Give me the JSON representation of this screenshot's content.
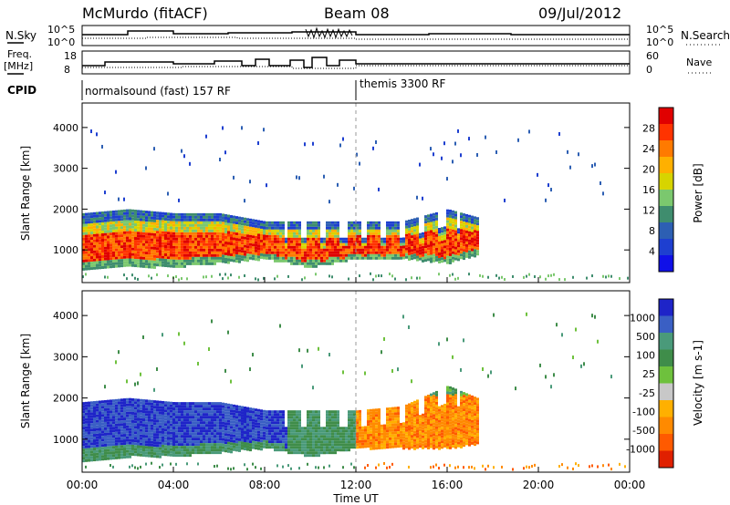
{
  "header": {
    "station": "McMurdo (fitACF)",
    "beam": "Beam 08",
    "date": "09/Jul/2012"
  },
  "top_panels": {
    "nsky_label": "N.Sky",
    "nsky_ticks": [
      "10^5",
      "10^0"
    ],
    "nsearch_label": "N.Search",
    "nsearch_ticks": [
      "10^5",
      "10^0"
    ],
    "freq_label": "Freq.",
    "freq_unit": "[MHz]",
    "freq_ticks": [
      "18",
      "8"
    ],
    "nave_label": "Nave",
    "nave_ticks": [
      "60",
      "0"
    ],
    "cpid_label": "CPID",
    "cpid_segments": [
      {
        "name": "normalsound (fast) 157 RF",
        "start_hour": 0
      },
      {
        "name": "themis 3300 RF",
        "start_hour": 12
      }
    ]
  },
  "colorbars": {
    "power": {
      "title": "Power [dB]",
      "ticks": [
        "28",
        "24",
        "20",
        "16",
        "12",
        "8",
        "4"
      ],
      "colors": [
        "#e00000",
        "#ff3300",
        "#ff7a00",
        "#ffb000",
        "#d7d400",
        "#7bc86e",
        "#3f8d6e",
        "#2d5fb3",
        "#1e3fd0",
        "#1010e8"
      ]
    },
    "velocity": {
      "title": "Velocity [m s-1]",
      "ticks": [
        "1000",
        "500",
        "100",
        "25",
        "-25",
        "-100",
        "-500",
        "-1000"
      ],
      "colors": [
        "#1e24c8",
        "#3a5fc4",
        "#4a9a7a",
        "#3f8d4a",
        "#6ec13d",
        "#c8c8c8",
        "#ffb000",
        "#ff8a00",
        "#ff5a00",
        "#e02000"
      ]
    }
  },
  "chart_data": [
    {
      "type": "heatmap",
      "title": "Power",
      "ylabel": "Slant Range [km]",
      "yticks": [
        "1000",
        "2000",
        "3000",
        "4000"
      ],
      "ylim": [
        200,
        4600
      ],
      "xlim_hours": [
        0,
        24
      ],
      "colorbar_label": "Power [dB]",
      "series_profile": [
        {
          "hour": 0.0,
          "low_km": 500,
          "high_km": 1900
        },
        {
          "hour": 2.0,
          "low_km": 600,
          "high_km": 2000
        },
        {
          "hour": 4.0,
          "low_km": 600,
          "high_km": 1900
        },
        {
          "hour": 6.0,
          "low_km": 700,
          "high_km": 1900
        },
        {
          "hour": 8.0,
          "low_km": 800,
          "high_km": 1700
        },
        {
          "hour": 10.0,
          "low_km": 600,
          "high_km": 1700
        },
        {
          "hour": 12.0,
          "low_km": 800,
          "high_km": 1700
        },
        {
          "hour": 14.0,
          "low_km": 800,
          "high_km": 1700
        },
        {
          "hour": 16.0,
          "low_km": 700,
          "high_km": 2000
        },
        {
          "hour": 17.3,
          "low_km": 900,
          "high_km": 1800
        }
      ]
    },
    {
      "type": "heatmap",
      "title": "Velocity",
      "ylabel": "Slant Range [km]",
      "yticks": [
        "1000",
        "2000",
        "3000",
        "4000"
      ],
      "ylim": [
        200,
        4600
      ],
      "xlim_hours": [
        0,
        24
      ],
      "xticks": [
        "00:00",
        "04:00",
        "08:00",
        "12:00",
        "16:00",
        "20:00",
        "00:00"
      ],
      "xlabel": "Time UT",
      "colorbar_label": "Velocity [m s-1]",
      "series_profile": [
        {
          "hour": 0.0,
          "low_km": 500,
          "high_km": 1900
        },
        {
          "hour": 2.0,
          "low_km": 600,
          "high_km": 2000
        },
        {
          "hour": 4.0,
          "low_km": 600,
          "high_km": 1900
        },
        {
          "hour": 6.0,
          "low_km": 700,
          "high_km": 1900
        },
        {
          "hour": 8.0,
          "low_km": 800,
          "high_km": 1700
        },
        {
          "hour": 10.0,
          "low_km": 600,
          "high_km": 1700
        },
        {
          "hour": 12.0,
          "low_km": 800,
          "high_km": 1700
        },
        {
          "hour": 14.0,
          "low_km": 800,
          "high_km": 1800
        },
        {
          "hour": 16.0,
          "low_km": 800,
          "high_km": 2300
        },
        {
          "hour": 17.3,
          "low_km": 900,
          "high_km": 2000
        }
      ]
    }
  ]
}
